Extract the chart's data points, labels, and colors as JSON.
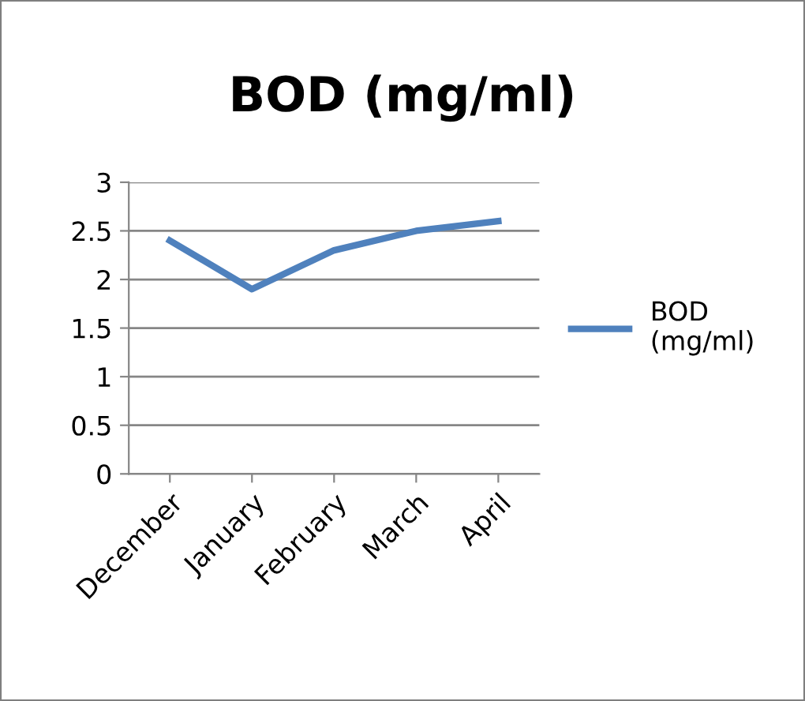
{
  "chart_data": {
    "type": "line",
    "title": "BOD (mg/ml)",
    "categories": [
      "December",
      "January",
      "February",
      "March",
      "April"
    ],
    "series": [
      {
        "name": "BOD\n(mg/ml)",
        "color": "#4f81bd",
        "values": [
          2.4,
          1.9,
          2.3,
          2.5,
          2.6
        ]
      }
    ],
    "ylim": [
      0,
      3
    ],
    "yticks": [
      0,
      0.5,
      1,
      1.5,
      2,
      2.5,
      3
    ],
    "grid": "y",
    "legend": "right",
    "marker": "none",
    "line_style": "solid"
  }
}
